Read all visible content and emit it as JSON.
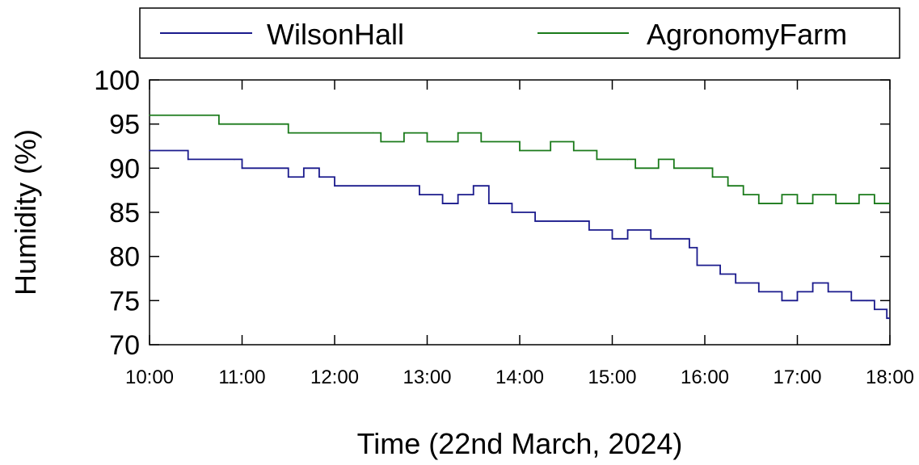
{
  "chart_data": {
    "type": "line",
    "title": "",
    "xlabel": "Time (22nd March, 2024)",
    "ylabel": "Humidity (%)",
    "ylim": [
      70,
      100
    ],
    "xlim": [
      "10:00",
      "18:00"
    ],
    "x_ticks": [
      "10:00",
      "11:00",
      "12:00",
      "13:00",
      "14:00",
      "15:00",
      "16:00",
      "17:00",
      "18:00"
    ],
    "y_ticks": [
      70,
      75,
      80,
      85,
      90,
      95,
      100
    ],
    "grid": false,
    "legend": "top",
    "line_style": "step",
    "series": [
      {
        "name": "WilsonHall",
        "color": "#1a1a8c",
        "points": [
          [
            "10:00",
            92
          ],
          [
            "10:25",
            91
          ],
          [
            "10:55",
            91
          ],
          [
            "11:00",
            90
          ],
          [
            "11:30",
            89
          ],
          [
            "11:40",
            90
          ],
          [
            "11:50",
            89
          ],
          [
            "12:00",
            88
          ],
          [
            "12:40",
            88
          ],
          [
            "12:55",
            87
          ],
          [
            "13:10",
            86
          ],
          [
            "13:20",
            87
          ],
          [
            "13:30",
            88
          ],
          [
            "13:40",
            86
          ],
          [
            "13:55",
            85
          ],
          [
            "14:10",
            84
          ],
          [
            "14:30",
            84
          ],
          [
            "14:45",
            83
          ],
          [
            "15:00",
            82
          ],
          [
            "15:10",
            83
          ],
          [
            "15:25",
            82
          ],
          [
            "15:40",
            82
          ],
          [
            "15:50",
            81
          ],
          [
            "15:55",
            79
          ],
          [
            "16:10",
            78
          ],
          [
            "16:20",
            77
          ],
          [
            "16:35",
            76
          ],
          [
            "16:50",
            75
          ],
          [
            "17:00",
            76
          ],
          [
            "17:10",
            77
          ],
          [
            "17:20",
            76
          ],
          [
            "17:35",
            75
          ],
          [
            "17:45",
            75
          ],
          [
            "17:50",
            74
          ],
          [
            "17:58",
            73
          ]
        ]
      },
      {
        "name": "AgronomyFarm",
        "color": "#1a7a1a",
        "points": [
          [
            "10:00",
            96
          ],
          [
            "10:45",
            95
          ],
          [
            "11:20",
            95
          ],
          [
            "11:30",
            94
          ],
          [
            "12:25",
            94
          ],
          [
            "12:30",
            93
          ],
          [
            "12:45",
            94
          ],
          [
            "13:00",
            93
          ],
          [
            "13:20",
            94
          ],
          [
            "13:35",
            93
          ],
          [
            "14:00",
            92
          ],
          [
            "14:20",
            93
          ],
          [
            "14:35",
            92
          ],
          [
            "14:50",
            91
          ],
          [
            "15:10",
            91
          ],
          [
            "15:15",
            90
          ],
          [
            "15:30",
            91
          ],
          [
            "15:40",
            90
          ],
          [
            "15:55",
            90
          ],
          [
            "16:05",
            89
          ],
          [
            "16:15",
            88
          ],
          [
            "16:25",
            87
          ],
          [
            "16:35",
            86
          ],
          [
            "16:50",
            87
          ],
          [
            "17:00",
            86
          ],
          [
            "17:10",
            87
          ],
          [
            "17:25",
            86
          ],
          [
            "17:40",
            87
          ],
          [
            "17:50",
            86
          ],
          [
            "17:58",
            86
          ]
        ]
      }
    ]
  }
}
